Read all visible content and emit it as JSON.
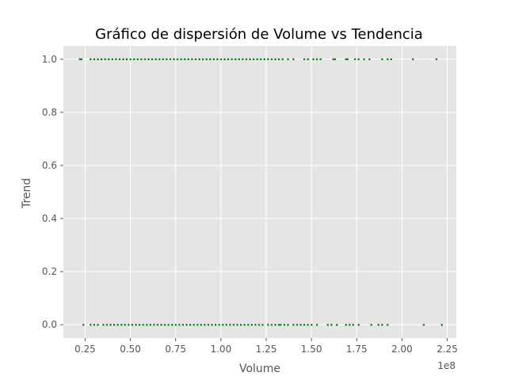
{
  "chart_data": {
    "type": "scatter",
    "title": "Gráfico de dispersión de Volume vs Tendencia",
    "xlabel": "Volume",
    "ylabel": "Trend",
    "x_offset_label": "1e8",
    "xlim": [
      0.13,
      2.3
    ],
    "ylim": [
      -0.05,
      1.05
    ],
    "x_ticks": [
      0.25,
      0.5,
      0.75,
      1.0,
      1.25,
      1.5,
      1.75,
      2.0,
      2.25
    ],
    "x_tick_labels": [
      "0.25",
      "0.50",
      "0.75",
      "1.00",
      "1.25",
      "1.50",
      "1.75",
      "2.00",
      "2.25"
    ],
    "y_ticks": [
      0.0,
      0.2,
      0.4,
      0.6,
      0.8,
      1.0
    ],
    "y_tick_labels": [
      "0.0",
      "0.2",
      "0.4",
      "0.6",
      "0.8",
      "1.0"
    ],
    "grid": true,
    "marker_color": "#008000",
    "background_color": "#e5e5e5",
    "grid_color": "#ffffff",
    "series": [
      {
        "y": 1,
        "x": [
          0.22,
          0.23,
          0.28,
          0.3,
          0.32,
          0.34,
          0.36,
          0.38,
          0.4,
          0.42,
          0.44,
          0.46,
          0.48,
          0.5,
          0.52,
          0.54,
          0.56,
          0.58,
          0.6,
          0.62,
          0.64,
          0.66,
          0.68,
          0.7,
          0.72,
          0.74,
          0.76,
          0.78,
          0.8,
          0.82,
          0.84,
          0.86,
          0.88,
          0.9,
          0.92,
          0.94,
          0.96,
          0.98,
          1.0,
          1.02,
          1.04,
          1.06,
          1.08,
          1.1,
          1.12,
          1.14,
          1.16,
          1.18,
          1.2,
          1.22,
          1.24,
          1.26,
          1.28,
          1.3,
          1.32,
          1.34,
          1.37,
          1.4,
          1.46,
          1.48,
          1.51,
          1.53,
          1.55,
          1.62,
          1.63,
          1.69,
          1.7,
          1.74,
          1.76,
          1.79,
          1.82,
          1.89,
          1.92,
          1.94,
          2.06,
          2.19
        ]
      },
      {
        "y": 0,
        "x": [
          0.24,
          0.28,
          0.3,
          0.32,
          0.35,
          0.37,
          0.39,
          0.41,
          0.43,
          0.45,
          0.47,
          0.49,
          0.51,
          0.53,
          0.55,
          0.57,
          0.59,
          0.61,
          0.63,
          0.65,
          0.67,
          0.69,
          0.71,
          0.73,
          0.75,
          0.77,
          0.79,
          0.81,
          0.83,
          0.85,
          0.87,
          0.89,
          0.91,
          0.93,
          0.95,
          0.97,
          0.99,
          1.01,
          1.03,
          1.05,
          1.07,
          1.09,
          1.11,
          1.13,
          1.15,
          1.17,
          1.19,
          1.21,
          1.23,
          1.26,
          1.28,
          1.3,
          1.32,
          1.33,
          1.35,
          1.37,
          1.4,
          1.42,
          1.44,
          1.46,
          1.48,
          1.5,
          1.53,
          1.59,
          1.61,
          1.64,
          1.69,
          1.71,
          1.73,
          1.76,
          1.83,
          1.87,
          1.89,
          1.92,
          2.12,
          2.22
        ]
      }
    ]
  }
}
